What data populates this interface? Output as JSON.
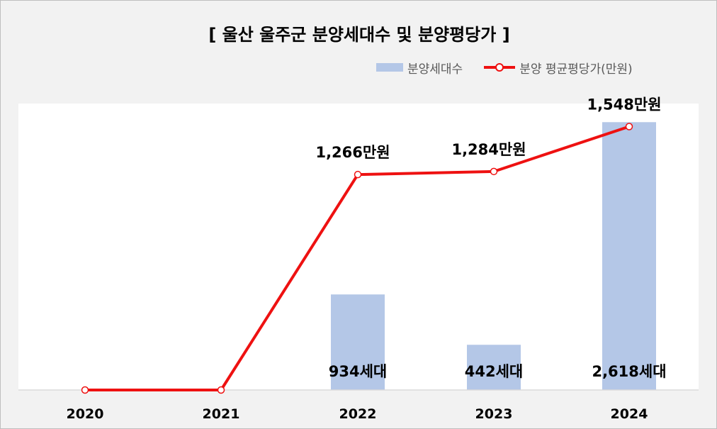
{
  "chart_data": {
    "type": "bar",
    "title": "[ 울산 울주군 분양세대수 및 분양평당가 ]",
    "categories": [
      "2020",
      "2021",
      "2022",
      "2023",
      "2024"
    ],
    "series": [
      {
        "name": "분양세대수",
        "type": "bar",
        "color": "#b4c7e7",
        "values": [
          0,
          0,
          934,
          442,
          2618
        ],
        "labels": [
          "",
          "",
          "934세대",
          "442세대",
          "2,618세대"
        ]
      },
      {
        "name": "분양 평균평당가(만원)",
        "type": "line",
        "color": "#ee1111",
        "values": [
          0,
          0,
          1266,
          1284,
          1548
        ],
        "labels": [
          "",
          "",
          "1,266만원",
          "1,284만원",
          "1,548만원"
        ]
      }
    ],
    "bar_axis_max": 2800,
    "line_axis_max": 1600,
    "grid": false,
    "legend_position": "top-right"
  }
}
